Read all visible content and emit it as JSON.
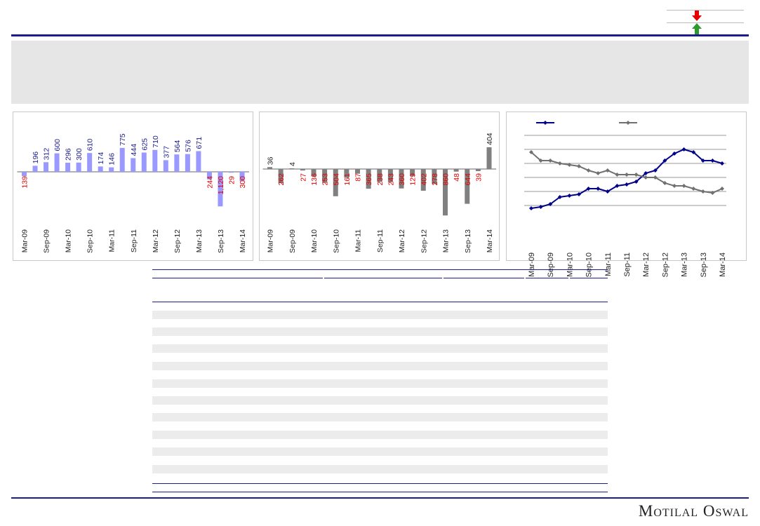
{
  "brand": "Motilal Oswal",
  "legend": {
    "down_color": "#e60000",
    "up_color": "#2e9a2e",
    "down_icon": "down-arrow-icon",
    "up_icon": "up-arrow-icon"
  },
  "chart_data": [
    {
      "type": "bar",
      "x_tick_labels": [
        "Mar-09",
        "Sep-09",
        "Mar-10",
        "Sep-10",
        "Mar-11",
        "Sep-11",
        "Mar-12",
        "Sep-12",
        "Mar-13",
        "Sep-13",
        "Mar-14"
      ],
      "values": [
        -139,
        196,
        312,
        600,
        296,
        300,
        610,
        174,
        146,
        775,
        444,
        625,
        710,
        377,
        564,
        576,
        671,
        -244,
        -1120,
        -29,
        -300
      ],
      "data_labels": [
        "139",
        "196",
        "312",
        "600",
        "296",
        "300",
        "610",
        "174",
        "146",
        "775",
        "444",
        "625",
        "710",
        "377",
        "564",
        "576",
        "671",
        "244",
        "1,120",
        "29",
        "300"
      ],
      "colors": {
        "bar": "#9999ff",
        "positive_label": "#1c1c8c",
        "negative_label": "#e00000"
      }
    },
    {
      "type": "bar",
      "x_tick_labels": [
        "Mar-09",
        "Sep-09",
        "Mar-10",
        "Sep-10",
        "Mar-11",
        "Sep-11",
        "Mar-12",
        "Sep-12",
        "Mar-13",
        "Sep-13",
        "Mar-14"
      ],
      "values": [
        36,
        -262,
        4,
        -27,
        -136,
        -253,
        -504,
        -161,
        -87,
        -365,
        -238,
        -243,
        -360,
        -129,
        -402,
        -278,
        -860,
        -48,
        -644,
        -39,
        404
      ],
      "data_labels": [
        "36",
        "262",
        "4",
        "27",
        "136",
        "253",
        "504",
        "161",
        "87",
        "365",
        "238",
        "243",
        "360",
        "129",
        "402",
        "278",
        "860",
        "48",
        "644",
        "39",
        "404"
      ],
      "colors": {
        "bar": "#808080",
        "positive_label": "#222222",
        "negative_label": "#e00000"
      }
    },
    {
      "type": "line",
      "x_tick_labels": [
        "Mar-09",
        "Sep-09",
        "Mar-10",
        "Sep-10",
        "Mar-11",
        "Sep-11",
        "Mar-12",
        "Sep-12",
        "Mar-13",
        "Sep-13",
        "Mar-14"
      ],
      "series": [
        {
          "color": "#00008b",
          "values": [
            2.8,
            2.9,
            3.1,
            3.6,
            3.7,
            3.8,
            4.2,
            4.2,
            4.0,
            4.4,
            4.5,
            4.7,
            5.3,
            5.5,
            6.2,
            6.7,
            7.0,
            6.8,
            6.2,
            6.2,
            6.0
          ]
        },
        {
          "color": "#707070",
          "values": [
            6.8,
            6.2,
            6.2,
            6.0,
            5.9,
            5.8,
            5.5,
            5.3,
            5.5,
            5.2,
            5.2,
            5.2,
            5.0,
            5.0,
            4.6,
            4.4,
            4.4,
            4.2,
            4.0,
            3.9,
            4.2
          ]
        }
      ],
      "ylim": [
        2,
        8
      ],
      "grid": true
    }
  ]
}
